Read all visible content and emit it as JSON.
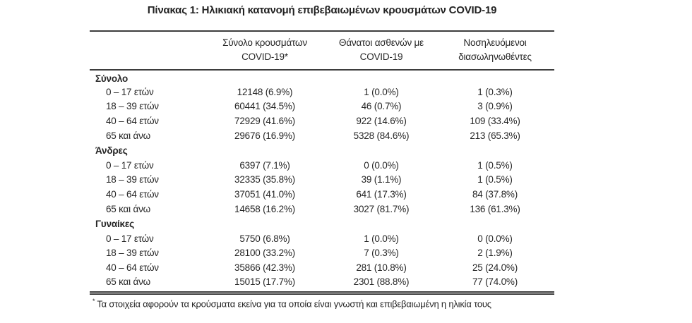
{
  "title": "Πίνακας 1: Ηλικιακή κατανομή επιβεβαιωμένων κρουσμάτων COVID-19",
  "table": {
    "columns": [
      {
        "line1": "Σύνολο κρουσμάτων",
        "line2": "COVID-19*"
      },
      {
        "line1": "Θάνατοι ασθενών με",
        "line2": "COVID-19"
      },
      {
        "line1": "Νοσηλευόμενοι",
        "line2": "διασωληνωθέντες"
      }
    ],
    "groups": [
      {
        "label": "Σύνολο",
        "rows": [
          {
            "label": "0 – 17 ετών",
            "cases": "12148 (6.9%)",
            "deaths": "1 (0.0%)",
            "intubated": "1 (0.3%)"
          },
          {
            "label": "18 – 39 ετών",
            "cases": "60441 (34.5%)",
            "deaths": "46 (0.7%)",
            "intubated": "3 (0.9%)"
          },
          {
            "label": "40 – 64 ετών",
            "cases": "72929 (41.6%)",
            "deaths": "922 (14.6%)",
            "intubated": "109 (33.4%)"
          },
          {
            "label": "65 και άνω",
            "cases": "29676 (16.9%)",
            "deaths": "5328 (84.6%)",
            "intubated": "213 (65.3%)"
          }
        ]
      },
      {
        "label": "Άνδρες",
        "rows": [
          {
            "label": "0 – 17 ετών",
            "cases": "6397 (7.1%)",
            "deaths": "0 (0.0%)",
            "intubated": "1 (0.5%)"
          },
          {
            "label": "18 – 39 ετών",
            "cases": "32335 (35.8%)",
            "deaths": "39 (1.1%)",
            "intubated": "1 (0.5%)"
          },
          {
            "label": "40 – 64 ετών",
            "cases": "37051 (41.0%)",
            "deaths": "641 (17.3%)",
            "intubated": "84 (37.8%)"
          },
          {
            "label": "65 και άνω",
            "cases": "14658 (16.2%)",
            "deaths": "3027 (81.7%)",
            "intubated": "136 (61.3%)"
          }
        ]
      },
      {
        "label": "Γυναίκες",
        "rows": [
          {
            "label": "0 – 17 ετών",
            "cases": "5750 (6.8%)",
            "deaths": "1 (0.0%)",
            "intubated": "0 (0.0%)"
          },
          {
            "label": "18 – 39 ετών",
            "cases": "28100 (33.2%)",
            "deaths": "7 (0.3%)",
            "intubated": "2 (1.9%)"
          },
          {
            "label": "40 – 64 ετών",
            "cases": "35866 (42.3%)",
            "deaths": "281 (10.8%)",
            "intubated": "25 (24.0%)"
          },
          {
            "label": "65 και άνω",
            "cases": "15015 (17.7%)",
            "deaths": "2301 (88.8%)",
            "intubated": "77 (74.0%)"
          }
        ]
      }
    ]
  },
  "footnote": {
    "marker": "*",
    "text": "Τα στοιχεία αφορούν τα κρούσματα εκείνα για τα οποία είναι γνωστή και επιβεβαιωμένη η ηλικία τους"
  }
}
